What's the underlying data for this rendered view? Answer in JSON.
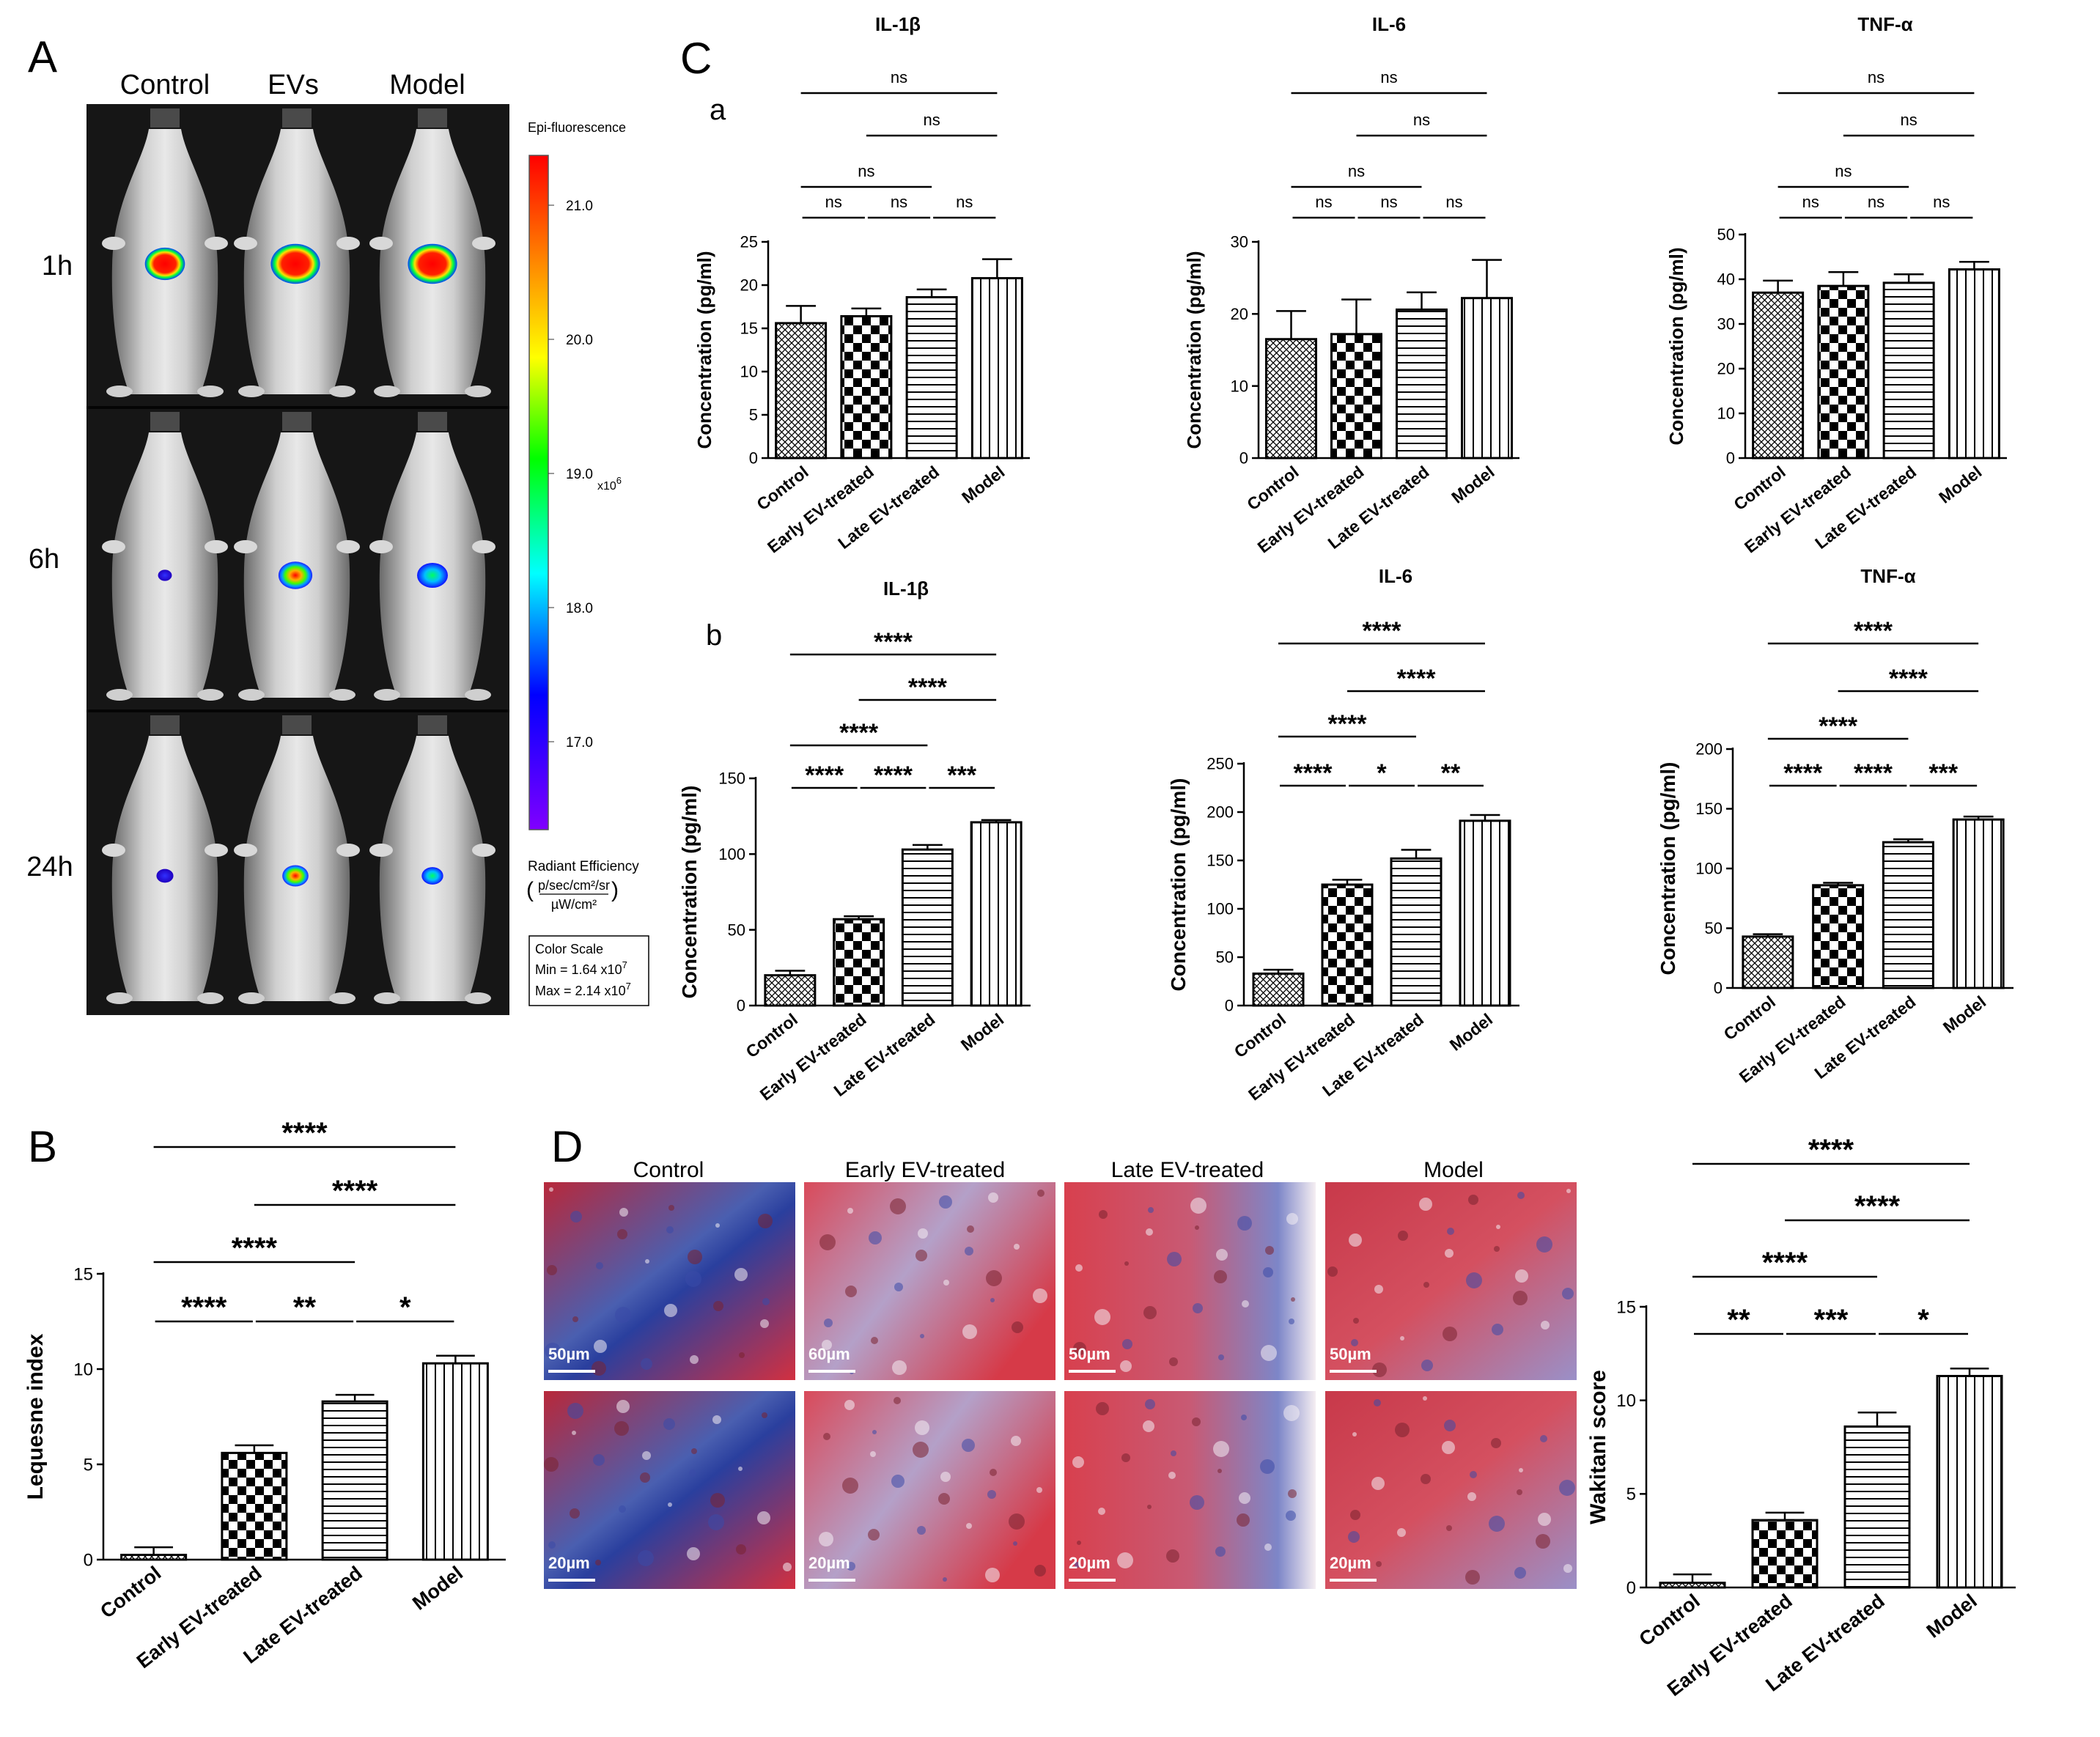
{
  "panelA": {
    "letter": "A",
    "columns": [
      "Control",
      "EVs",
      "Model"
    ],
    "rows": [
      "1h",
      "6h",
      "24h"
    ],
    "colorbar": {
      "title": "Epi-fluorescence",
      "ticks": [
        "21.0",
        "20.0",
        "19.0",
        "18.0",
        "17.0"
      ],
      "multiplier": "x10",
      "multiplier_exp": "6",
      "unit_label": "Radiant Efficiency",
      "unit_num": "p/sec/cm²/sr",
      "unit_den": "µW/cm²",
      "scale_title": "Color Scale",
      "scale_min": "Min = 1.64 x10",
      "scale_min_exp": "7",
      "scale_max": "Max = 2.14 x10",
      "scale_max_exp": "7"
    }
  },
  "panelC": {
    "letter": "C",
    "sub_a": "a",
    "sub_b": "b"
  },
  "panelD": {
    "letter": "D",
    "columns": [
      "Control",
      "Early EV-treated",
      "Late EV-treated",
      "Model"
    ],
    "scalebars_top": [
      "50µm",
      "60µm",
      "50µm",
      "50µm"
    ],
    "scalebars_bottom": [
      "20µm",
      "20µm",
      "20µm",
      "20µm"
    ]
  },
  "chart_data": [
    {
      "id": "Ca1",
      "type": "bar",
      "title": "IL-1β",
      "ylabel": "Concentration (pg/ml)",
      "categories": [
        "Control",
        "Early EV-treated",
        "Late EV-treated",
        "Model"
      ],
      "values": [
        15.6,
        16.4,
        18.6,
        20.8
      ],
      "errors": [
        2.0,
        0.9,
        0.9,
        2.2
      ],
      "ylim": [
        0,
        25
      ],
      "yticks": [
        0,
        5,
        10,
        15,
        20,
        25
      ],
      "comparisons": [
        {
          "from": 0,
          "to": 3,
          "label": "ns"
        },
        {
          "from": 1,
          "to": 3,
          "label": "ns"
        },
        {
          "from": 0,
          "to": 2,
          "label": "ns"
        },
        {
          "from": 0,
          "to": 1,
          "label": "ns"
        },
        {
          "from": 1,
          "to": 2,
          "label": "ns"
        },
        {
          "from": 2,
          "to": 3,
          "label": "ns"
        }
      ]
    },
    {
      "id": "Ca2",
      "type": "bar",
      "title": "IL-6",
      "ylabel": "Concentration (pg/ml)",
      "categories": [
        "Control",
        "Early EV-treated",
        "Late EV-treated",
        "Model"
      ],
      "values": [
        16.5,
        17.2,
        20.6,
        22.2
      ],
      "errors": [
        3.9,
        4.8,
        2.4,
        5.3
      ],
      "ylim": [
        0,
        30
      ],
      "yticks": [
        0,
        10,
        20,
        30
      ],
      "comparisons": [
        {
          "from": 0,
          "to": 3,
          "label": "ns"
        },
        {
          "from": 1,
          "to": 3,
          "label": "ns"
        },
        {
          "from": 0,
          "to": 2,
          "label": "ns"
        },
        {
          "from": 0,
          "to": 1,
          "label": "ns"
        },
        {
          "from": 1,
          "to": 2,
          "label": "ns"
        },
        {
          "from": 2,
          "to": 3,
          "label": "ns"
        }
      ]
    },
    {
      "id": "Ca3",
      "type": "bar",
      "title": "TNF-α",
      "ylabel": "Concentration (pg/ml)",
      "categories": [
        "Control",
        "Early EV-treated",
        "Late EV-treated",
        "Model"
      ],
      "values": [
        37.0,
        38.5,
        39.2,
        42.2
      ],
      "errors": [
        2.7,
        3.1,
        1.9,
        1.7
      ],
      "ylim": [
        0,
        50
      ],
      "yticks": [
        0,
        10,
        20,
        30,
        40,
        50
      ],
      "comparisons": [
        {
          "from": 0,
          "to": 3,
          "label": "ns"
        },
        {
          "from": 1,
          "to": 3,
          "label": "ns"
        },
        {
          "from": 0,
          "to": 2,
          "label": "ns"
        },
        {
          "from": 0,
          "to": 1,
          "label": "ns"
        },
        {
          "from": 1,
          "to": 2,
          "label": "ns"
        },
        {
          "from": 2,
          "to": 3,
          "label": "ns"
        }
      ]
    },
    {
      "id": "Cb1",
      "type": "bar",
      "title": "IL-1β",
      "ylabel": "Concentration (pg/ml)",
      "categories": [
        "Control",
        "Early EV-treated",
        "Late EV-treated",
        "Model"
      ],
      "values": [
        20,
        57,
        103,
        121
      ],
      "errors": [
        3,
        2,
        3,
        1.5
      ],
      "ylim": [
        0,
        150
      ],
      "yticks": [
        0,
        50,
        100,
        150
      ],
      "comparisons": [
        {
          "from": 0,
          "to": 3,
          "label": "****"
        },
        {
          "from": 1,
          "to": 3,
          "label": "****"
        },
        {
          "from": 0,
          "to": 2,
          "label": "****"
        },
        {
          "from": 0,
          "to": 1,
          "label": "****"
        },
        {
          "from": 1,
          "to": 2,
          "label": "****"
        },
        {
          "from": 2,
          "to": 3,
          "label": "***"
        }
      ]
    },
    {
      "id": "Cb2",
      "type": "bar",
      "title": "IL-6",
      "ylabel": "Concentration (pg/ml)",
      "categories": [
        "Control",
        "Early EV-treated",
        "Late EV-treated",
        "Model"
      ],
      "values": [
        33,
        125,
        152,
        191
      ],
      "errors": [
        4,
        5,
        9,
        6
      ],
      "ylim": [
        0,
        250
      ],
      "yticks": [
        0,
        50,
        100,
        150,
        200,
        250
      ],
      "comparisons": [
        {
          "from": 0,
          "to": 3,
          "label": "****"
        },
        {
          "from": 1,
          "to": 3,
          "label": "****"
        },
        {
          "from": 0,
          "to": 2,
          "label": "****"
        },
        {
          "from": 0,
          "to": 1,
          "label": "****"
        },
        {
          "from": 1,
          "to": 2,
          "label": "*"
        },
        {
          "from": 2,
          "to": 3,
          "label": "**"
        }
      ]
    },
    {
      "id": "Cb3",
      "type": "bar",
      "title": "TNF-α",
      "ylabel": "Concentration (pg/ml)",
      "categories": [
        "Control",
        "Early EV-treated",
        "Late EV-treated",
        "Model"
      ],
      "values": [
        43,
        86,
        122,
        141
      ],
      "errors": [
        2,
        2,
        2.5,
        2.5
      ],
      "ylim": [
        0,
        200
      ],
      "yticks": [
        0,
        50,
        100,
        150,
        200
      ],
      "comparisons": [
        {
          "from": 0,
          "to": 3,
          "label": "****"
        },
        {
          "from": 1,
          "to": 3,
          "label": "****"
        },
        {
          "from": 0,
          "to": 2,
          "label": "****"
        },
        {
          "from": 0,
          "to": 1,
          "label": "****"
        },
        {
          "from": 1,
          "to": 2,
          "label": "****"
        },
        {
          "from": 2,
          "to": 3,
          "label": "***"
        }
      ]
    },
    {
      "id": "B",
      "type": "bar",
      "title": "",
      "ylabel": "Lequesne index",
      "categories": [
        "Control",
        "Early EV-treated",
        "Late EV-treated",
        "Model"
      ],
      "values": [
        0.25,
        5.6,
        8.3,
        10.3
      ],
      "errors": [
        0.4,
        0.4,
        0.35,
        0.4
      ],
      "ylim": [
        0,
        15
      ],
      "yticks": [
        0,
        5,
        10,
        15
      ],
      "comparisons": [
        {
          "from": 0,
          "to": 3,
          "label": "****"
        },
        {
          "from": 1,
          "to": 3,
          "label": "****"
        },
        {
          "from": 0,
          "to": 2,
          "label": "****"
        },
        {
          "from": 0,
          "to": 1,
          "label": "****"
        },
        {
          "from": 1,
          "to": 2,
          "label": "**"
        },
        {
          "from": 2,
          "to": 3,
          "label": "*"
        }
      ]
    },
    {
      "id": "Dchart",
      "type": "bar",
      "title": "",
      "ylabel": "Wakitani score",
      "categories": [
        "Control",
        "Early EV-treated",
        "Late EV-treated",
        "Model"
      ],
      "values": [
        0.25,
        3.6,
        8.6,
        11.3
      ],
      "errors": [
        0.45,
        0.4,
        0.75,
        0.4
      ],
      "ylim": [
        0,
        15
      ],
      "yticks": [
        0,
        5,
        10,
        15
      ],
      "comparisons": [
        {
          "from": 0,
          "to": 3,
          "label": "****"
        },
        {
          "from": 1,
          "to": 3,
          "label": "****"
        },
        {
          "from": 0,
          "to": 2,
          "label": "****"
        },
        {
          "from": 0,
          "to": 1,
          "label": "**"
        },
        {
          "from": 1,
          "to": 2,
          "label": "***"
        },
        {
          "from": 2,
          "to": 3,
          "label": "*"
        }
      ]
    }
  ]
}
